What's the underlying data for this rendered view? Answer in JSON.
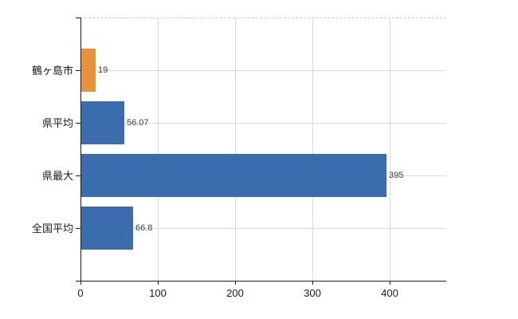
{
  "chart_data": {
    "type": "bar",
    "orientation": "horizontal",
    "title": "",
    "xlabel": "",
    "ylabel": "",
    "categories": [
      "鶴ヶ島市",
      "県平均",
      "県最大",
      "全国平均"
    ],
    "values": [
      19,
      56.07,
      395,
      66.8
    ],
    "value_labels": [
      "19",
      "56.07",
      "395",
      "66.8"
    ],
    "bar_colors": [
      "#e8913f",
      "#3b6cae",
      "#3b6cae",
      "#3b6cae"
    ],
    "x_ticks": [
      0,
      100,
      200,
      300,
      400
    ],
    "x_tick_labels": [
      "0",
      "100",
      "200",
      "300",
      "400"
    ],
    "xlim": [
      0,
      473
    ],
    "grid": true,
    "legend": false
  },
  "colors": {
    "bar_blue": "#3b6cae",
    "bar_orange": "#e8913f",
    "axis": "#1a1a1a",
    "gridline": "#d9d9d9",
    "top_border": "#c9c9c9",
    "value_text": "#3c3c3c",
    "tick_text": "#1a1a1a",
    "background": "#ffffff"
  }
}
